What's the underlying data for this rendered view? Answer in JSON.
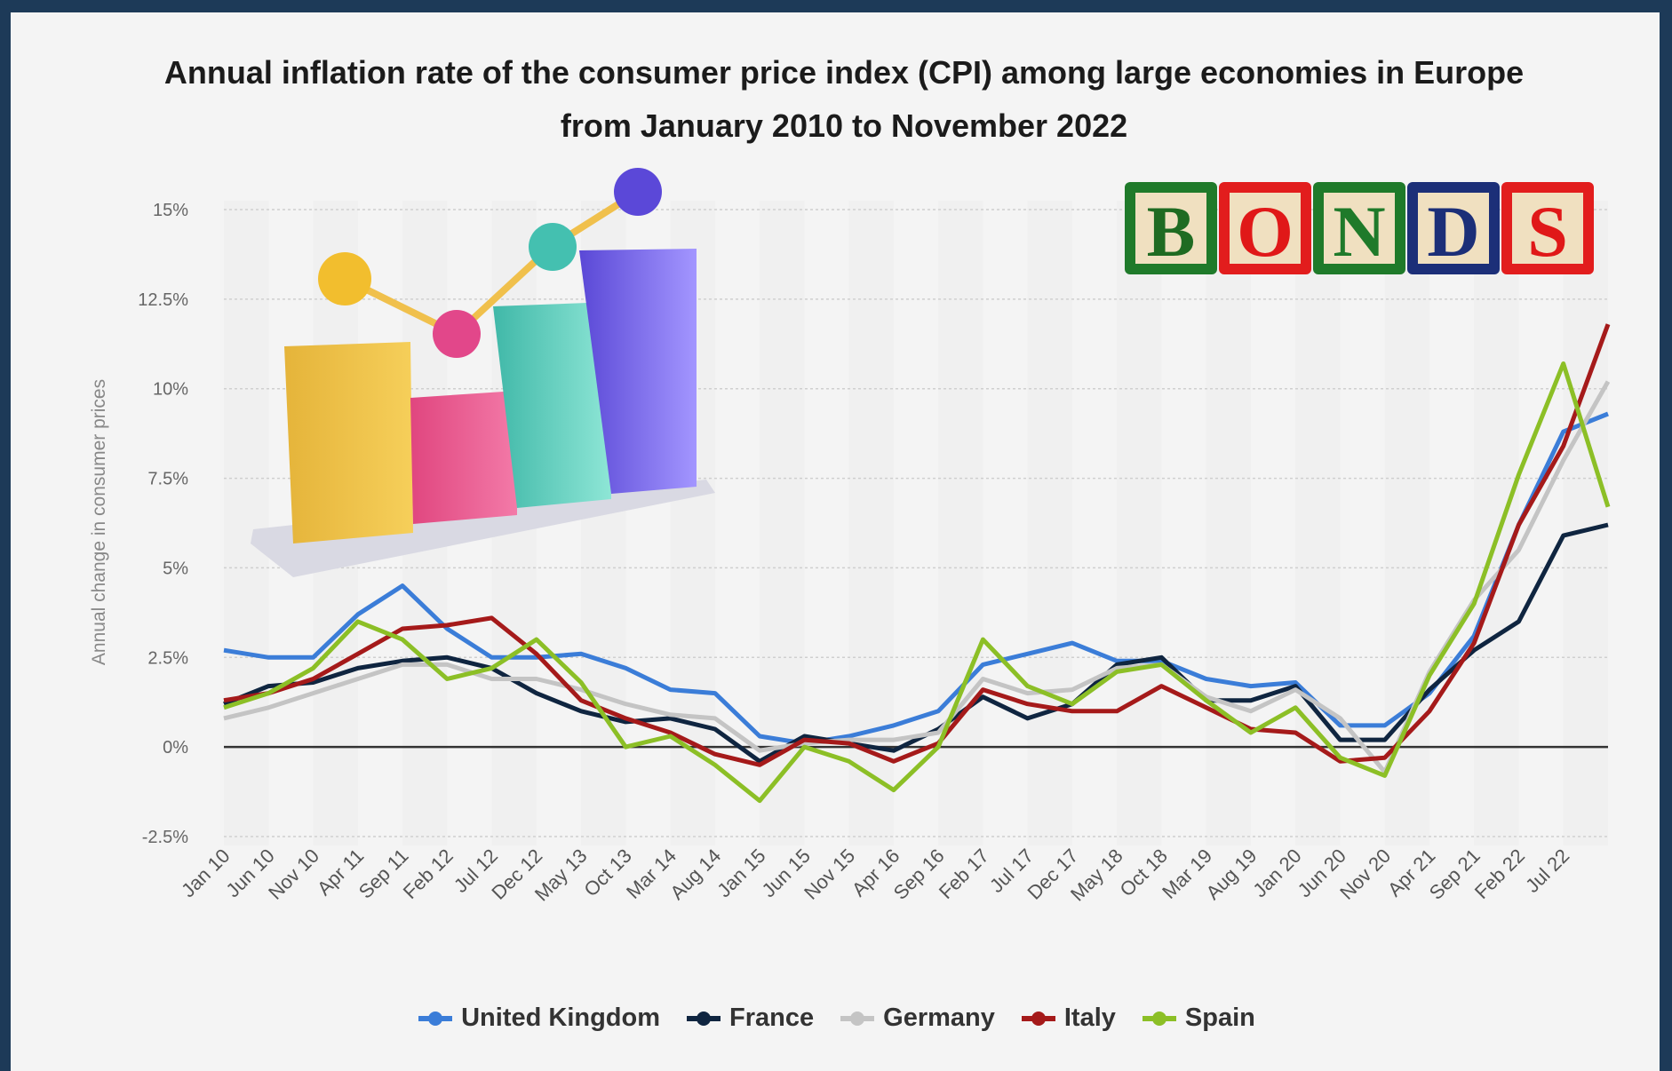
{
  "chart_data": {
    "type": "line",
    "title": "Annual inflation rate of the consumer price index (CPI) among large economies in Europe from January 2010 to November 2022",
    "y_label": "Annual change in consumer prices",
    "badge": [
      "B",
      "O",
      "N",
      "D",
      "S"
    ],
    "categories": [
      "Jan 10",
      "Jun 10",
      "Nov 10",
      "Apr 11",
      "Sep 11",
      "Feb 12",
      "Jul 12",
      "Dec 12",
      "May 13",
      "Oct 13",
      "Mar 14",
      "Aug 14",
      "Jan 15",
      "Jun 15",
      "Nov 15",
      "Apr 16",
      "Sep 16",
      "Feb 17",
      "Jul 17",
      "Dec 17",
      "May 18",
      "Oct 18",
      "Mar 19",
      "Aug 19",
      "Jan 20",
      "Jun 20",
      "Nov 20",
      "Apr 21",
      "Sep 21",
      "Feb 22",
      "Jul 22",
      null
    ],
    "ylim": [
      -2.5,
      15
    ],
    "yticks": [
      {
        "value": -2.5,
        "label": "-2.5%"
      },
      {
        "value": 0,
        "label": "0%"
      },
      {
        "value": 2.5,
        "label": "2.5%"
      },
      {
        "value": 5,
        "label": "5%"
      },
      {
        "value": 7.5,
        "label": "7.5%"
      },
      {
        "value": 10,
        "label": "10%"
      },
      {
        "value": 12.5,
        "label": "12.5%"
      },
      {
        "value": 15,
        "label": "15%"
      }
    ],
    "grid": true,
    "series": [
      {
        "name": "United Kingdom",
        "color": "#3b7dd8",
        "values": [
          2.7,
          2.5,
          2.5,
          3.7,
          4.5,
          3.3,
          2.5,
          2.5,
          2.6,
          2.2,
          1.6,
          1.5,
          0.3,
          0.1,
          0.3,
          0.6,
          1.0,
          2.3,
          2.6,
          2.9,
          2.4,
          2.4,
          1.9,
          1.7,
          1.8,
          0.6,
          0.6,
          1.5,
          3.1,
          6.2,
          8.8,
          9.3
        ]
      },
      {
        "name": "France",
        "color": "#0f2540",
        "values": [
          1.2,
          1.7,
          1.8,
          2.2,
          2.4,
          2.5,
          2.2,
          1.5,
          1.0,
          0.7,
          0.8,
          0.5,
          -0.4,
          0.3,
          0.1,
          -0.1,
          0.5,
          1.4,
          0.8,
          1.2,
          2.3,
          2.5,
          1.3,
          1.3,
          1.7,
          0.2,
          0.2,
          1.6,
          2.7,
          3.5,
          5.9,
          6.2
        ]
      },
      {
        "name": "Germany",
        "color": "#c4c4c4",
        "values": [
          0.8,
          1.1,
          1.5,
          1.9,
          2.3,
          2.3,
          1.9,
          1.9,
          1.6,
          1.2,
          0.9,
          0.8,
          -0.1,
          0.1,
          0.2,
          0.2,
          0.4,
          1.9,
          1.5,
          1.6,
          2.2,
          2.3,
          1.4,
          1.0,
          1.6,
          0.8,
          -0.7,
          2.1,
          4.1,
          5.5,
          8.0,
          10.2
        ]
      },
      {
        "name": "Italy",
        "color": "#a51a1a",
        "values": [
          1.3,
          1.5,
          1.9,
          2.6,
          3.3,
          3.4,
          3.6,
          2.6,
          1.3,
          0.8,
          0.4,
          -0.2,
          -0.5,
          0.2,
          0.1,
          -0.4,
          0.1,
          1.6,
          1.2,
          1.0,
          1.0,
          1.7,
          1.1,
          0.5,
          0.4,
          -0.4,
          -0.3,
          1.0,
          2.9,
          6.2,
          8.4,
          11.8
        ]
      },
      {
        "name": "Spain",
        "color": "#8cbf26",
        "values": [
          1.1,
          1.5,
          2.2,
          3.5,
          3.0,
          1.9,
          2.2,
          3.0,
          1.8,
          0.0,
          0.3,
          -0.5,
          -1.5,
          0.0,
          -0.4,
          -1.2,
          0.0,
          3.0,
          1.7,
          1.2,
          2.1,
          2.3,
          1.3,
          0.4,
          1.1,
          -0.3,
          -0.8,
          2.0,
          4.0,
          7.6,
          10.7,
          6.7
        ]
      }
    ]
  }
}
